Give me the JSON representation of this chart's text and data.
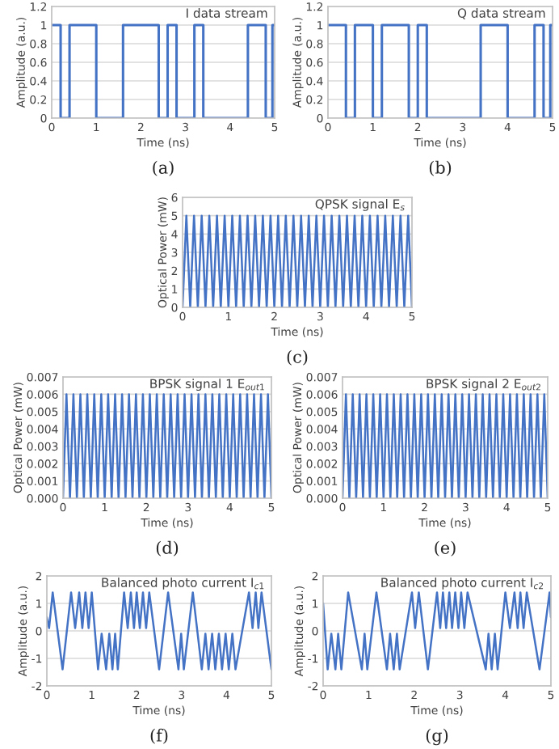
{
  "chart_data": [
    {
      "type": "step",
      "title": "I data stream",
      "xlabel": "Time (ns)",
      "ylabel": "Amplitude (a.u.)",
      "color": "#4472c4",
      "grid": "y",
      "annotations": [
        "(a)"
      ],
      "x": [
        0,
        0.2,
        0.4,
        1.0,
        1.6,
        2.4,
        2.6,
        2.8,
        3.2,
        3.4,
        4.4,
        4.8,
        4.95,
        5
      ],
      "values": [
        1,
        0,
        1,
        0,
        1,
        0,
        1,
        0,
        1,
        0,
        1,
        0,
        1,
        1
      ],
      "xlim": [
        0,
        5
      ],
      "ylim": [
        0,
        1.2
      ],
      "xticks": [
        0,
        1,
        2,
        3,
        4,
        5
      ],
      "yticks": [
        0,
        0.2,
        0.4,
        0.6,
        0.8,
        1,
        1.2
      ]
    },
    {
      "type": "step",
      "title": "Q data stream",
      "xlabel": "Time (ns)",
      "ylabel": "Amplitude (a.u.)",
      "color": "#4472c4",
      "grid": "y",
      "annotations": [
        "(b)"
      ],
      "x": [
        0,
        0.4,
        0.6,
        1.0,
        1.2,
        1.8,
        2.0,
        2.2,
        3.4,
        4.0,
        4.6,
        4.8,
        4.95,
        5
      ],
      "values": [
        1,
        0,
        1,
        0,
        1,
        0,
        1,
        0,
        1,
        0,
        1,
        0,
        1,
        1
      ],
      "xlim": [
        0,
        5
      ],
      "ylim": [
        0,
        1.2
      ],
      "xticks": [
        0,
        1,
        2,
        3,
        4,
        5
      ],
      "yticks": [
        0,
        0.2,
        0.4,
        0.6,
        0.8,
        1,
        1.2
      ]
    },
    {
      "type": "line",
      "title": "QPSK signal E$_{s}$",
      "xlabel": "Time (ns)",
      "ylabel": "Optical Power (mW)",
      "color": "#4472c4",
      "grid": "y",
      "annotations": [
        "(c)"
      ],
      "x": [
        0,
        0.083,
        0.167,
        0.25,
        0.333,
        0.417,
        0.5,
        0.583,
        0.667,
        0.75,
        0.833,
        0.917,
        1,
        1.083,
        1.167,
        1.25,
        1.333,
        1.417,
        1.5,
        1.583,
        1.667,
        1.75,
        1.833,
        1.917,
        2,
        2.083,
        2.167,
        2.25,
        2.333,
        2.417,
        2.5,
        2.583,
        2.667,
        2.75,
        2.833,
        2.917,
        3,
        3.083,
        3.167,
        3.25,
        3.333,
        3.417,
        3.5,
        3.583,
        3.667,
        3.75,
        3.833,
        3.917,
        4,
        4.083,
        4.167,
        4.25,
        4.333,
        4.417,
        4.5,
        4.583,
        4.667,
        4.75,
        4.833,
        4.917,
        5
      ],
      "values": [
        0,
        5,
        0,
        5,
        0,
        5,
        0,
        5,
        0,
        5,
        0,
        5,
        0,
        5,
        0,
        5,
        0,
        5,
        0,
        5,
        0,
        5,
        0,
        5,
        0,
        5,
        0,
        5,
        0,
        5,
        0,
        5,
        0,
        5,
        0,
        5,
        0,
        5,
        0,
        5,
        0,
        5,
        0,
        5,
        0,
        5,
        0,
        5,
        0,
        5,
        0,
        5,
        0,
        5,
        0,
        5,
        0,
        5,
        0,
        5,
        0
      ],
      "xlim": [
        0,
        5
      ],
      "ylim": [
        0,
        6
      ],
      "xticks": [
        0,
        1,
        2,
        3,
        4,
        5
      ],
      "yticks": [
        0,
        1,
        2,
        3,
        4,
        5,
        6
      ]
    },
    {
      "type": "line",
      "title": "BPSK signal 1 E$_{out1}$",
      "xlabel": "Time (ns)",
      "ylabel": "Optical Power (mW)",
      "color": "#4472c4",
      "grid": "y",
      "annotations": [
        "(d)"
      ],
      "x": [
        0,
        0.083,
        0.167,
        0.25,
        0.333,
        0.417,
        0.5,
        0.583,
        0.667,
        0.75,
        0.833,
        0.917,
        1,
        1.083,
        1.167,
        1.25,
        1.333,
        1.417,
        1.5,
        1.583,
        1.667,
        1.75,
        1.833,
        1.917,
        2,
        2.083,
        2.167,
        2.25,
        2.333,
        2.417,
        2.5,
        2.583,
        2.667,
        2.75,
        2.833,
        2.917,
        3,
        3.083,
        3.167,
        3.25,
        3.333,
        3.417,
        3.5,
        3.583,
        3.667,
        3.75,
        3.833,
        3.917,
        4,
        4.083,
        4.167,
        4.25,
        4.333,
        4.417,
        4.5,
        4.583,
        4.667,
        4.75,
        4.833,
        4.917,
        5
      ],
      "values": [
        0,
        0.006,
        0,
        0.006,
        0,
        0.006,
        0,
        0.006,
        0,
        0.006,
        0,
        0.006,
        0,
        0.006,
        0,
        0.006,
        0,
        0.006,
        0,
        0.006,
        0,
        0.006,
        0,
        0.006,
        0,
        0.006,
        0,
        0.006,
        0,
        0.006,
        0,
        0.006,
        0,
        0.006,
        0,
        0.006,
        0,
        0.006,
        0,
        0.006,
        0,
        0.006,
        0,
        0.006,
        0,
        0.006,
        0,
        0.006,
        0,
        0.006,
        0,
        0.006,
        0,
        0.006,
        0,
        0.006,
        0,
        0.006,
        0,
        0.006,
        0
      ],
      "xlim": [
        0,
        5
      ],
      "ylim": [
        0,
        0.007
      ],
      "xticks": [
        0,
        1,
        2,
        3,
        4,
        5
      ],
      "yticks": [
        {
          "value": 0,
          "label": "0.000"
        },
        0.001,
        0.002,
        0.003,
        0.004,
        0.005,
        0.006,
        0.007
      ]
    },
    {
      "type": "line",
      "title": "BPSK signal 2 E$_{out2}$",
      "xlabel": "Time (ns)",
      "ylabel": "Optical Power (mW)",
      "color": "#4472c4",
      "grid": "y",
      "annotations": [
        "(e)"
      ],
      "x": [
        0,
        0.083,
        0.167,
        0.25,
        0.333,
        0.417,
        0.5,
        0.583,
        0.667,
        0.75,
        0.833,
        0.917,
        1,
        1.083,
        1.167,
        1.25,
        1.333,
        1.417,
        1.5,
        1.583,
        1.667,
        1.75,
        1.833,
        1.917,
        2,
        2.083,
        2.167,
        2.25,
        2.333,
        2.417,
        2.5,
        2.583,
        2.667,
        2.75,
        2.833,
        2.917,
        3,
        3.083,
        3.167,
        3.25,
        3.333,
        3.417,
        3.5,
        3.583,
        3.667,
        3.75,
        3.833,
        3.917,
        4,
        4.083,
        4.167,
        4.25,
        4.333,
        4.417,
        4.5,
        4.583,
        4.667,
        4.75,
        4.833,
        4.917,
        5
      ],
      "values": [
        0,
        0.006,
        0,
        0.006,
        0,
        0.006,
        0,
        0.006,
        0,
        0.006,
        0,
        0.006,
        0,
        0.006,
        0,
        0.006,
        0,
        0.006,
        0,
        0.006,
        0,
        0.006,
        0,
        0.006,
        0,
        0.006,
        0,
        0.006,
        0,
        0.006,
        0,
        0.006,
        0,
        0.006,
        0,
        0.006,
        0,
        0.006,
        0,
        0.006,
        0,
        0.006,
        0,
        0.006,
        0,
        0.006,
        0,
        0.006,
        0,
        0.006,
        0,
        0.006,
        0,
        0.006,
        0,
        0.006,
        0,
        0.006,
        0,
        0.006,
        0
      ],
      "xlim": [
        0,
        5
      ],
      "ylim": [
        0,
        0.007
      ],
      "xticks": [
        0,
        1,
        2,
        3,
        4,
        5
      ],
      "yticks": [
        {
          "value": 0,
          "label": "0.000"
        },
        0.001,
        0.002,
        0.003,
        0.004,
        0.005,
        0.006,
        0.007
      ]
    },
    {
      "type": "line",
      "title": "Balanced photo current I$_{c1}$",
      "xlabel": "Time (ns)",
      "ylabel": "Amplitude (a.u.)",
      "color": "#4472c4",
      "grid": "y",
      "annotations": [
        "(f)"
      ],
      "x": [
        0,
        0.05,
        0.13,
        0.35,
        0.54,
        0.63,
        0.72,
        0.79,
        0.86,
        0.93,
        1.0,
        1.14,
        1.22,
        1.32,
        1.39,
        1.46,
        1.52,
        1.58,
        1.72,
        1.8,
        1.87,
        1.94,
        2.0,
        2.07,
        2.14,
        2.21,
        2.28,
        2.5,
        2.7,
        2.93,
        2.99,
        3.05,
        3.25,
        3.45,
        3.53,
        3.6,
        3.68,
        3.75,
        3.83,
        3.9,
        3.98,
        4.05,
        4.13,
        4.2,
        4.5,
        4.58,
        4.65,
        4.71,
        4.78,
        5
      ],
      "values": [
        0.5,
        0.1,
        1.4,
        -1.4,
        1.4,
        0.1,
        1.4,
        0.1,
        1.4,
        0.1,
        1.4,
        -1.4,
        -0.1,
        -1.4,
        -0.1,
        -1.4,
        -0.1,
        -1.4,
        1.4,
        0.1,
        1.4,
        0.1,
        1.4,
        0.1,
        1.4,
        0.1,
        1.4,
        -1.4,
        1.4,
        -1.4,
        -0.1,
        -1.4,
        1.4,
        -1.4,
        -0.1,
        -1.4,
        -0.1,
        -1.4,
        -0.1,
        -1.4,
        -0.1,
        -1.4,
        -0.1,
        -1.4,
        1.4,
        0.1,
        1.4,
        0.1,
        1.4,
        -1.4
      ],
      "xlim": [
        0,
        5
      ],
      "ylim": [
        -2,
        2
      ],
      "xticks": [
        0,
        1,
        2,
        3,
        4,
        5
      ],
      "yticks": [
        -2,
        -1,
        0,
        1,
        2
      ]
    },
    {
      "type": "line",
      "title": "Balanced photo current I$_{c2}$",
      "xlabel": "Time (ns)",
      "ylabel": "Amplitude (a.u.)",
      "color": "#4472c4",
      "grid": "y",
      "annotations": [
        "(g)"
      ],
      "x": [
        0,
        0.1,
        0.18,
        0.27,
        0.33,
        0.4,
        0.55,
        0.85,
        0.91,
        0.97,
        1.17,
        1.4,
        1.47,
        1.55,
        1.62,
        1.68,
        1.95,
        2.02,
        2.1,
        2.3,
        2.5,
        2.57,
        2.63,
        2.7,
        2.77,
        2.83,
        2.9,
        2.97,
        3.03,
        3.1,
        3.17,
        3.57,
        3.63,
        3.7,
        3.77,
        3.83,
        4.0,
        4.1,
        4.2,
        4.27,
        4.33,
        4.4,
        4.47,
        4.75,
        4.97,
        5
      ],
      "values": [
        1.0,
        -1.4,
        -0.1,
        -1.4,
        -0.1,
        -1.4,
        1.4,
        -1.4,
        -0.1,
        -1.4,
        1.4,
        -1.4,
        -0.1,
        -1.4,
        -0.1,
        -1.4,
        1.4,
        0.1,
        1.4,
        -1.4,
        1.4,
        0.1,
        1.4,
        0.1,
        1.4,
        0.1,
        1.4,
        0.1,
        1.4,
        0.1,
        1.4,
        -1.4,
        -0.1,
        -1.4,
        -0.1,
        -1.4,
        1.4,
        0.1,
        1.4,
        0.1,
        1.4,
        0.1,
        1.4,
        -1.4,
        1.4,
        0.5
      ],
      "xlim": [
        0,
        5
      ],
      "ylim": [
        -2,
        2
      ],
      "xticks": [
        0,
        1,
        2,
        3,
        4,
        5
      ],
      "yticks": [
        -2,
        -1,
        0,
        1,
        2
      ]
    }
  ]
}
